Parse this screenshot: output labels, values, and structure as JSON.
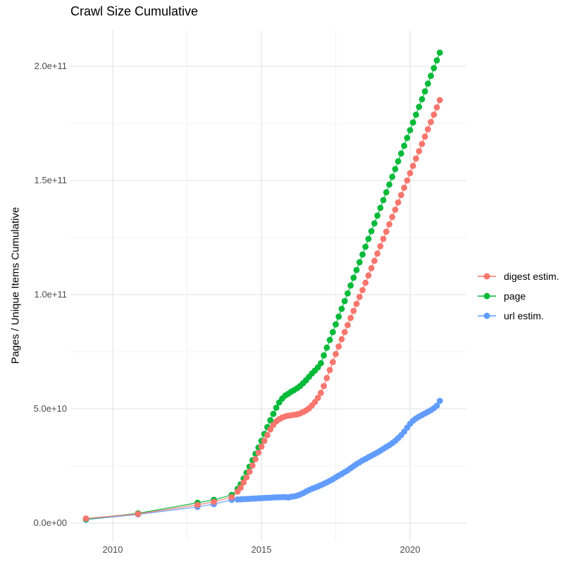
{
  "chart_data": {
    "type": "line",
    "title": "Crawl Size Cumulative",
    "xlabel": "",
    "ylabel": "Pages / Unique Items Cumulative",
    "value_unit": "count (stored values are billions, i.e. v × 1e9)",
    "xlim": [
      2008.6,
      2021.9
    ],
    "ylim": [
      0,
      215000000000.0
    ],
    "grid": "on",
    "legend_position": "right",
    "x_ticks": [
      {
        "label": "2010",
        "year": 2010
      },
      {
        "label": "2015",
        "year": 2015
      },
      {
        "label": "2020",
        "year": 2020
      }
    ],
    "x_minor_ticks": [
      2012.5,
      2017.5
    ],
    "y_ticks": [
      {
        "label": "0.0e+00",
        "value_billions": 0
      },
      {
        "label": "5.0e+10",
        "value_billions": 50
      },
      {
        "label": "1.0e+11",
        "value_billions": 100
      },
      {
        "label": "1.5e+11",
        "value_billions": 150
      },
      {
        "label": "2.0e+11",
        "value_billions": 200
      }
    ],
    "y_minor_ticks_billions": [
      25,
      75,
      125,
      175
    ],
    "colors": {
      "grid_major": "#e2e2e2",
      "grid_minor": "#efefef",
      "axis_text": "#4d4d4d",
      "title_text": "#000000"
    },
    "series": [
      {
        "name": "digest estim.",
        "color": "#F8766D",
        "points": [
          [
            2009.1,
            2.0
          ],
          [
            2010.85,
            4.0
          ],
          [
            2012.85,
            8.0
          ],
          [
            2013.4,
            9.3
          ],
          [
            2014.0,
            11.4
          ],
          [
            2014.2,
            13.8
          ],
          [
            2014.3,
            15.5
          ],
          [
            2014.4,
            17.8
          ],
          [
            2014.5,
            20.0
          ],
          [
            2014.6,
            22.5
          ],
          [
            2014.7,
            25.2
          ],
          [
            2014.8,
            28.0
          ],
          [
            2014.9,
            30.8
          ],
          [
            2015.0,
            33.5
          ],
          [
            2015.1,
            36.0
          ],
          [
            2015.2,
            38.5
          ],
          [
            2015.3,
            41.0
          ],
          [
            2015.4,
            43.0
          ],
          [
            2015.5,
            44.5
          ],
          [
            2015.6,
            45.5
          ],
          [
            2015.7,
            46.2
          ],
          [
            2015.8,
            46.7
          ],
          [
            2015.9,
            47.0
          ],
          [
            2016.0,
            47.2
          ],
          [
            2016.1,
            47.4
          ],
          [
            2016.2,
            47.6
          ],
          [
            2016.3,
            48.0
          ],
          [
            2016.4,
            48.6
          ],
          [
            2016.5,
            49.3
          ],
          [
            2016.6,
            50.2
          ],
          [
            2016.7,
            51.5
          ],
          [
            2016.8,
            53.0
          ],
          [
            2016.9,
            54.8
          ],
          [
            2017.0,
            57.0
          ],
          [
            2017.1,
            60.0
          ],
          [
            2017.2,
            63.5
          ],
          [
            2017.3,
            67.0
          ],
          [
            2017.4,
            70.5
          ],
          [
            2017.5,
            74.0
          ],
          [
            2017.6,
            77.3
          ],
          [
            2017.7,
            80.5
          ],
          [
            2017.8,
            83.6
          ],
          [
            2017.9,
            86.7
          ],
          [
            2018.0,
            89.8
          ],
          [
            2018.1,
            92.9
          ],
          [
            2018.2,
            96.0
          ],
          [
            2018.3,
            99.0
          ],
          [
            2018.4,
            102.0
          ],
          [
            2018.5,
            105.2
          ],
          [
            2018.6,
            108.4
          ],
          [
            2018.7,
            111.6
          ],
          [
            2018.8,
            114.8
          ],
          [
            2018.9,
            118.0
          ],
          [
            2019.0,
            121.2
          ],
          [
            2019.1,
            124.4
          ],
          [
            2019.2,
            127.6
          ],
          [
            2019.3,
            130.8
          ],
          [
            2019.4,
            134.0
          ],
          [
            2019.5,
            137.2
          ],
          [
            2019.6,
            140.4
          ],
          [
            2019.7,
            143.6
          ],
          [
            2019.8,
            146.8
          ],
          [
            2019.9,
            150.0
          ],
          [
            2020.0,
            153.2
          ],
          [
            2020.1,
            156.4
          ],
          [
            2020.2,
            159.6
          ],
          [
            2020.3,
            162.8
          ],
          [
            2020.4,
            166.0
          ],
          [
            2020.5,
            169.2
          ],
          [
            2020.6,
            172.4
          ],
          [
            2020.7,
            175.6
          ],
          [
            2020.8,
            178.8
          ],
          [
            2020.9,
            182.0
          ],
          [
            2021.0,
            185.2
          ]
        ]
      },
      {
        "name": "page",
        "color": "#00BA38",
        "points": [
          [
            2009.1,
            1.7
          ],
          [
            2010.85,
            4.3
          ],
          [
            2012.85,
            8.9
          ],
          [
            2013.4,
            10.2
          ],
          [
            2014.0,
            12.3
          ],
          [
            2014.2,
            15.0
          ],
          [
            2014.3,
            17.0
          ],
          [
            2014.4,
            19.5
          ],
          [
            2014.5,
            22.0
          ],
          [
            2014.6,
            24.7
          ],
          [
            2014.7,
            27.5
          ],
          [
            2014.8,
            30.3
          ],
          [
            2014.9,
            33.1
          ],
          [
            2015.0,
            36.0
          ],
          [
            2015.1,
            39.0
          ],
          [
            2015.2,
            42.0
          ],
          [
            2015.3,
            45.0
          ],
          [
            2015.4,
            47.8
          ],
          [
            2015.5,
            50.5
          ],
          [
            2015.6,
            52.8
          ],
          [
            2015.7,
            54.5
          ],
          [
            2015.8,
            55.8
          ],
          [
            2015.9,
            56.6
          ],
          [
            2016.0,
            57.5
          ],
          [
            2016.1,
            58.2
          ],
          [
            2016.2,
            59.0
          ],
          [
            2016.3,
            60.0
          ],
          [
            2016.4,
            61.2
          ],
          [
            2016.5,
            62.5
          ],
          [
            2016.6,
            64.0
          ],
          [
            2016.7,
            65.5
          ],
          [
            2016.8,
            66.8
          ],
          [
            2016.9,
            68.2
          ],
          [
            2017.0,
            70.0
          ],
          [
            2017.1,
            73.4
          ],
          [
            2017.2,
            76.8
          ],
          [
            2017.3,
            80.2
          ],
          [
            2017.4,
            83.6
          ],
          [
            2017.5,
            87.0
          ],
          [
            2017.6,
            90.4
          ],
          [
            2017.7,
            93.8
          ],
          [
            2017.8,
            97.2
          ],
          [
            2017.9,
            100.6
          ],
          [
            2018.0,
            104.0
          ],
          [
            2018.1,
            107.4
          ],
          [
            2018.2,
            110.8
          ],
          [
            2018.3,
            114.2
          ],
          [
            2018.4,
            117.6
          ],
          [
            2018.5,
            121.0
          ],
          [
            2018.6,
            124.4
          ],
          [
            2018.7,
            127.8
          ],
          [
            2018.8,
            131.2
          ],
          [
            2018.9,
            134.6
          ],
          [
            2019.0,
            138.0
          ],
          [
            2019.1,
            141.4
          ],
          [
            2019.2,
            144.8
          ],
          [
            2019.3,
            148.2
          ],
          [
            2019.4,
            151.6
          ],
          [
            2019.5,
            155.0
          ],
          [
            2019.6,
            158.4
          ],
          [
            2019.7,
            161.8
          ],
          [
            2019.8,
            165.2
          ],
          [
            2019.9,
            168.6
          ],
          [
            2020.0,
            172.0
          ],
          [
            2020.1,
            175.4
          ],
          [
            2020.2,
            178.8
          ],
          [
            2020.3,
            182.2
          ],
          [
            2020.4,
            185.6
          ],
          [
            2020.5,
            189.0
          ],
          [
            2020.6,
            192.4
          ],
          [
            2020.7,
            195.8
          ],
          [
            2020.8,
            199.2
          ],
          [
            2020.9,
            202.6
          ],
          [
            2021.0,
            206.0
          ]
        ]
      },
      {
        "name": "url estim.",
        "color": "#619CFF",
        "points": [
          [
            2009.1,
            1.5
          ],
          [
            2010.85,
            3.8
          ],
          [
            2012.85,
            7.1
          ],
          [
            2013.4,
            8.3
          ],
          [
            2014.0,
            10.2
          ],
          [
            2014.2,
            10.35
          ],
          [
            2014.3,
            10.4
          ],
          [
            2014.4,
            10.5
          ],
          [
            2014.5,
            10.55
          ],
          [
            2014.6,
            10.6
          ],
          [
            2014.7,
            10.7
          ],
          [
            2014.8,
            10.75
          ],
          [
            2014.9,
            10.85
          ],
          [
            2015.0,
            10.9
          ],
          [
            2015.1,
            11.0
          ],
          [
            2015.2,
            11.05
          ],
          [
            2015.3,
            11.1
          ],
          [
            2015.4,
            11.2
          ],
          [
            2015.5,
            11.25
          ],
          [
            2015.6,
            11.3
          ],
          [
            2015.7,
            11.35
          ],
          [
            2015.8,
            11.4
          ],
          [
            2015.9,
            11.2
          ],
          [
            2016.0,
            11.5
          ],
          [
            2016.1,
            11.7
          ],
          [
            2016.2,
            12.0
          ],
          [
            2016.3,
            12.5
          ],
          [
            2016.4,
            13.1
          ],
          [
            2016.5,
            13.8
          ],
          [
            2016.6,
            14.4
          ],
          [
            2016.7,
            15.0
          ],
          [
            2016.8,
            15.5
          ],
          [
            2016.9,
            16.0
          ],
          [
            2017.0,
            16.6
          ],
          [
            2017.1,
            17.2
          ],
          [
            2017.2,
            17.8
          ],
          [
            2017.3,
            18.5
          ],
          [
            2017.4,
            19.2
          ],
          [
            2017.5,
            20.0
          ],
          [
            2017.6,
            20.8
          ],
          [
            2017.7,
            21.5
          ],
          [
            2017.8,
            22.3
          ],
          [
            2017.9,
            23.1
          ],
          [
            2018.0,
            24.0
          ],
          [
            2018.1,
            24.9
          ],
          [
            2018.2,
            25.8
          ],
          [
            2018.3,
            26.6
          ],
          [
            2018.4,
            27.4
          ],
          [
            2018.5,
            28.1
          ],
          [
            2018.6,
            28.8
          ],
          [
            2018.7,
            29.5
          ],
          [
            2018.8,
            30.2
          ],
          [
            2018.9,
            30.9
          ],
          [
            2019.0,
            31.7
          ],
          [
            2019.1,
            32.5
          ],
          [
            2019.2,
            33.3
          ],
          [
            2019.3,
            34.1
          ],
          [
            2019.4,
            35.0
          ],
          [
            2019.5,
            36.0
          ],
          [
            2019.6,
            37.2
          ],
          [
            2019.7,
            38.5
          ],
          [
            2019.8,
            40.0
          ],
          [
            2019.9,
            41.8
          ],
          [
            2020.0,
            43.5
          ],
          [
            2020.1,
            44.8
          ],
          [
            2020.2,
            45.8
          ],
          [
            2020.3,
            46.6
          ],
          [
            2020.4,
            47.3
          ],
          [
            2020.5,
            48.0
          ],
          [
            2020.6,
            48.7
          ],
          [
            2020.7,
            49.4
          ],
          [
            2020.8,
            50.3
          ],
          [
            2020.9,
            51.4
          ],
          [
            2021.0,
            53.5
          ]
        ]
      }
    ]
  }
}
